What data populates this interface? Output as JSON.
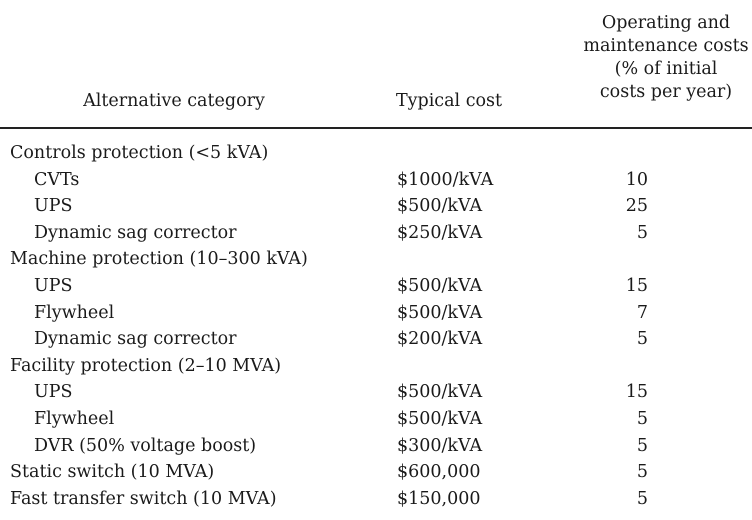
{
  "headers": {
    "category": "Alternative category",
    "cost": "Typical cost",
    "om_lines": [
      "Operating and",
      "maintenance costs",
      "(% of initial",
      "costs per year)"
    ]
  },
  "rows": [
    {
      "label": "Controls protection (<5 kVA)",
      "group": true,
      "cost": "",
      "om": ""
    },
    {
      "label": "CVTs",
      "group": false,
      "cost": "$1000/kVA",
      "om": "10"
    },
    {
      "label": "UPS",
      "group": false,
      "cost": "$500/kVA",
      "om": "25"
    },
    {
      "label": "Dynamic sag corrector",
      "group": false,
      "cost": "$250/kVA",
      "om": "5"
    },
    {
      "label": "Machine protection (10–300 kVA)",
      "group": true,
      "cost": "",
      "om": ""
    },
    {
      "label": "UPS",
      "group": false,
      "cost": "$500/kVA",
      "om": "15"
    },
    {
      "label": "Flywheel",
      "group": false,
      "cost": "$500/kVA",
      "om": "7"
    },
    {
      "label": "Dynamic sag corrector",
      "group": false,
      "cost": "$200/kVA",
      "om": "5"
    },
    {
      "label": "Facility protection (2–10 MVA)",
      "group": true,
      "cost": "",
      "om": ""
    },
    {
      "label": "UPS",
      "group": false,
      "cost": "$500/kVA",
      "om": "15"
    },
    {
      "label": "Flywheel",
      "group": false,
      "cost": "$500/kVA",
      "om": "5"
    },
    {
      "label": "DVR (50% voltage boost)",
      "group": false,
      "cost": "$300/kVA",
      "om": "5"
    },
    {
      "label": "Static switch (10 MVA)",
      "group": true,
      "cost": "$600,000",
      "om": "5"
    },
    {
      "label": "Fast transfer switch (10 MVA)",
      "group": true,
      "cost": "$150,000",
      "om": "5"
    }
  ]
}
